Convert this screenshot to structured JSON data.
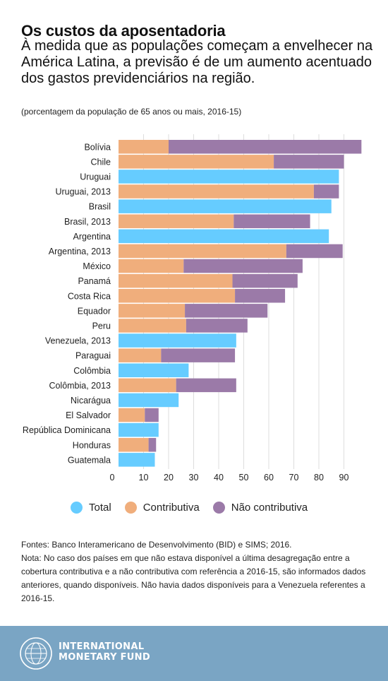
{
  "header": {
    "title": "Os custos da aposentadoria",
    "subtitle": "À medida que as populações começam a envelhecer na América Latina, a previsão é de um aumento acentuado dos gastos previdenciários na região.",
    "note": "(porcentagem da população de 65 anos ou mais, 2016-15)"
  },
  "colors": {
    "total": "#66ccff",
    "contributiva": "#f0ae7c",
    "nao_contributiva": "#9b7aa8",
    "gridline": "#dddddd",
    "footer_background": "#7aa5c4"
  },
  "chart_data": {
    "type": "bar",
    "orientation": "horizontal",
    "stacked": true,
    "xlim": [
      0,
      100
    ],
    "x_ticks": [
      0,
      10,
      20,
      30,
      40,
      50,
      60,
      70,
      80,
      90
    ],
    "grid": true,
    "legend_position": "bottom",
    "categories": [
      "Bolívia",
      "Chile",
      "Uruguai",
      "Uruguai, 2013",
      "Brasil",
      "Brasil, 2013",
      "Argentina",
      "Argentina, 2013",
      "México",
      "Panamá",
      "Costa Rica",
      "Equador",
      "Peru",
      "Venezuela, 2013",
      "Paraguai",
      "Colômbia",
      "Colômbia, 2013",
      "Nicarágua",
      "El Salvador",
      "República Dominicana",
      "Honduras",
      "Guatemala"
    ],
    "series": [
      {
        "name": "Total",
        "key": "total",
        "values": [
          null,
          null,
          88,
          null,
          85,
          null,
          84,
          null,
          null,
          null,
          null,
          null,
          null,
          47,
          null,
          28,
          null,
          24,
          null,
          16,
          null,
          14.5
        ]
      },
      {
        "name": "Contributiva",
        "key": "contributiva",
        "values": [
          20,
          62,
          null,
          78,
          null,
          46,
          null,
          67,
          26,
          45.5,
          46.5,
          26.5,
          27,
          null,
          17,
          null,
          23,
          null,
          10.5,
          null,
          12,
          null
        ]
      },
      {
        "name": "Não contributiva",
        "key": "nao_contributiva",
        "values": [
          77,
          28,
          null,
          10,
          null,
          30.5,
          null,
          22.5,
          47.5,
          26,
          20,
          33,
          24.5,
          null,
          29.5,
          null,
          24,
          null,
          5.5,
          null,
          3,
          null
        ]
      }
    ]
  },
  "footer": {
    "sources": "Fontes: Banco Interamericano de Desenvolvimento (BID) e SIMS; 2016.",
    "nota": "Nota: No caso dos países em que não estava disponível a última desagregação entre a cobertura contributiva e a não contributiva com referência a 2016-15, são informados dados anteriores, quando disponíveis. Não havia dados disponíveis para a Venezuela referentes a 2016-15.",
    "brand_line1": "INTERNATIONAL",
    "brand_line2": "MONETARY FUND"
  }
}
